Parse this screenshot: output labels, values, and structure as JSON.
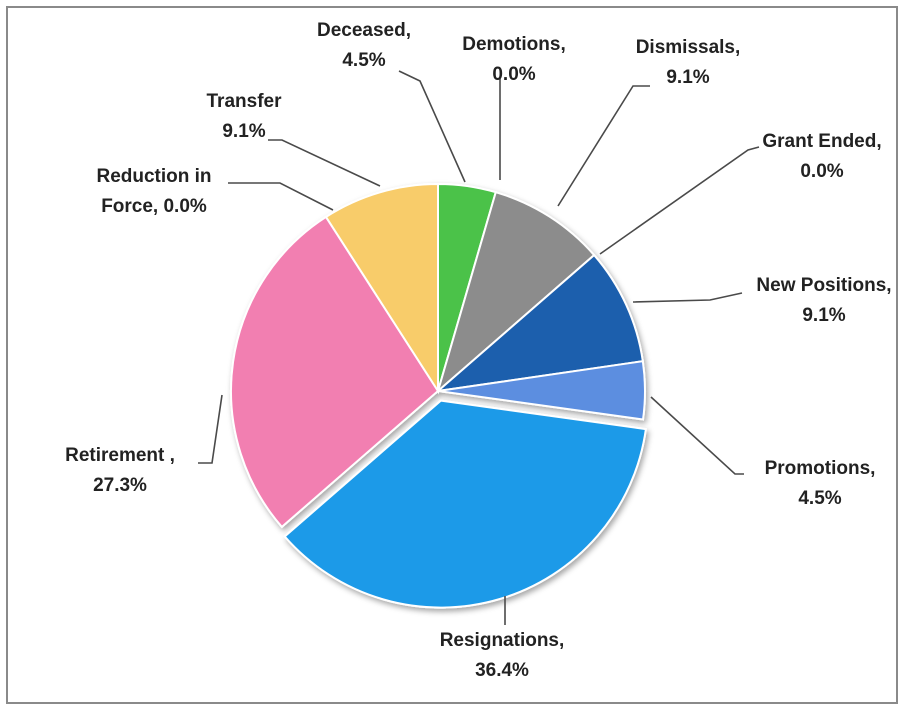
{
  "chart_data": {
    "type": "pie",
    "slices": [
      {
        "label": "Deceased,",
        "value_label": "4.5%",
        "value": 4.5,
        "color": "#4cc24a"
      },
      {
        "label": "Demotions,",
        "value_label": "0.0%",
        "value": 0.0,
        "color": "#2a2a2a"
      },
      {
        "label": "Dismissals,",
        "value_label": "9.1%",
        "value": 9.1,
        "color": "#8c8c8c"
      },
      {
        "label": "Grant Ended,",
        "value_label": "0.0%",
        "value": 0.0,
        "color": "#3a6fb0"
      },
      {
        "label": "New Positions,",
        "value_label": "9.1%",
        "value": 9.1,
        "color": "#1f5fad"
      },
      {
        "label": "Promotions,",
        "value_label": "4.5%",
        "value": 4.5,
        "color": "#5b8ee0"
      },
      {
        "label": "Resignations,",
        "value_label": "36.4%",
        "value": 36.4,
        "color": "#1e9ae8"
      },
      {
        "label": "Retirement ,",
        "value_label": "27.3%",
        "value": 27.3,
        "color": "#f27fb1"
      },
      {
        "label": "Reduction in Force,",
        "value_label": "0.0%",
        "value": 0.0,
        "color": "#d94f8f"
      },
      {
        "label": "Transfer",
        "value_label": "9.1%",
        "value": 9.1,
        "color": "#f8cc6a"
      }
    ]
  }
}
